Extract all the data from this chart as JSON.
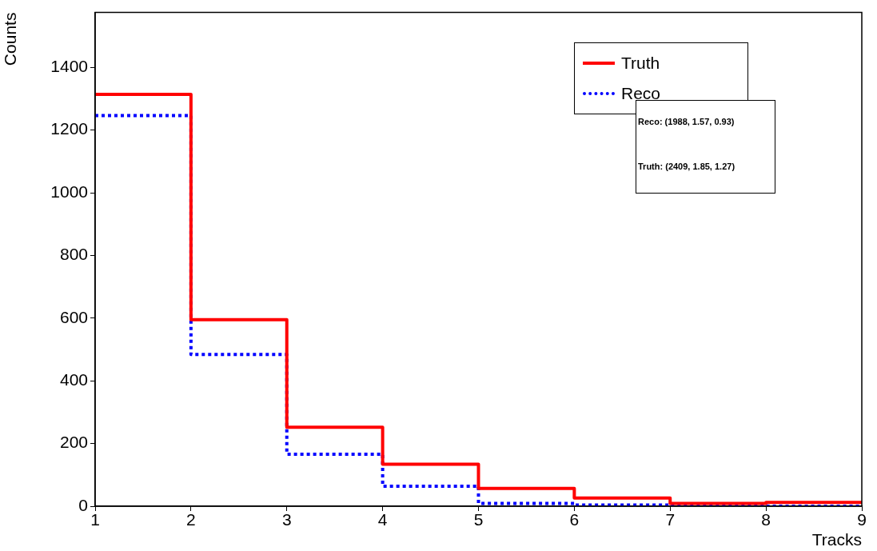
{
  "chart_data": {
    "type": "histogram",
    "xlabel": "Tracks",
    "ylabel": "Counts",
    "bins": [
      1,
      2,
      3,
      4,
      5,
      6,
      7,
      8,
      9
    ],
    "series": [
      {
        "name": "Truth",
        "color": "#ff0000",
        "line_style": "solid",
        "values": [
          1314,
          595,
          252,
          134,
          57,
          26,
          9,
          12
        ]
      },
      {
        "name": "Reco",
        "color": "#0000ff",
        "line_style": "dotted",
        "values": [
          1246,
          484,
          166,
          64,
          9,
          4,
          2,
          0
        ]
      }
    ],
    "xlim": [
      1,
      9
    ],
    "xticks": [
      1,
      2,
      3,
      4,
      5,
      6,
      7,
      8,
      9
    ],
    "ylim": [
      0,
      1575
    ],
    "yticks": [
      0,
      200,
      400,
      600,
      800,
      1000,
      1200,
      1400
    ],
    "grid": false,
    "legend": "top right",
    "annotations": [
      "Reco: (1988, 1.57, 0.93)",
      "Truth: (2409, 1.85, 1.27)"
    ]
  }
}
